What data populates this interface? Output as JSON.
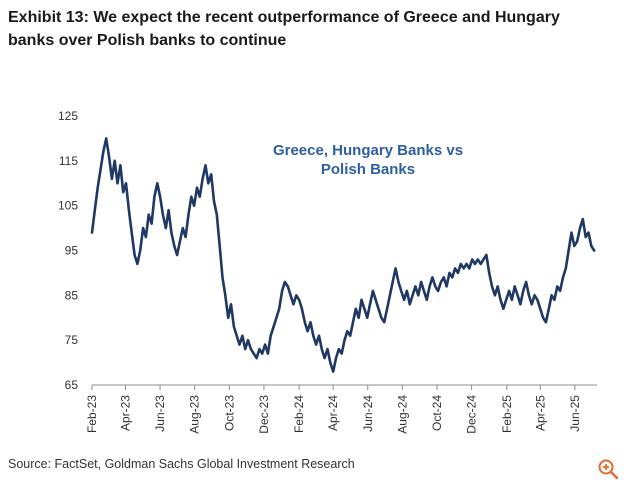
{
  "title": "Exhibit 13: We expect the recent outperformance of Greece and Hungary banks over Polish banks to continue",
  "source": "Source: FactSet, Goldman Sachs Global Investment Research",
  "zoom_icon": "zoom-in-icon",
  "colors": {
    "line": "#1f3864",
    "annotation": "#2e5f9e",
    "axis": "#8c8c8c",
    "zoom": "#e8692c"
  },
  "chart_data": {
    "type": "line",
    "annotation": [
      "Greece, Hungary Banks vs",
      "Polish Banks"
    ],
    "ylim": [
      65,
      125
    ],
    "yticks": [
      65,
      75,
      85,
      95,
      105,
      115,
      125
    ],
    "xlim": [
      "2023-02-01",
      "2025-07-10"
    ],
    "xticks": [
      {
        "date": "2023-02-01",
        "label": "Feb-23"
      },
      {
        "date": "2023-04-01",
        "label": "Apr-23"
      },
      {
        "date": "2023-06-01",
        "label": "Jun-23"
      },
      {
        "date": "2023-08-01",
        "label": "Aug-23"
      },
      {
        "date": "2023-10-01",
        "label": "Oct-23"
      },
      {
        "date": "2023-12-01",
        "label": "Dec-23"
      },
      {
        "date": "2024-02-01",
        "label": "Feb-24"
      },
      {
        "date": "2024-04-01",
        "label": "Apr-24"
      },
      {
        "date": "2024-06-01",
        "label": "Jun-24"
      },
      {
        "date": "2024-08-01",
        "label": "Aug-24"
      },
      {
        "date": "2024-10-01",
        "label": "Oct-24"
      },
      {
        "date": "2024-12-01",
        "label": "Dec-24"
      },
      {
        "date": "2025-02-01",
        "label": "Feb-25"
      },
      {
        "date": "2025-04-01",
        "label": "Apr-25"
      },
      {
        "date": "2025-06-01",
        "label": "Jun-25"
      }
    ],
    "grid": false,
    "legend": "none",
    "series": [
      {
        "points": [
          [
            "2023-02-01",
            99
          ],
          [
            "2023-02-06",
            104
          ],
          [
            "2023-02-11",
            109
          ],
          [
            "2023-02-16",
            113
          ],
          [
            "2023-02-21",
            117
          ],
          [
            "2023-02-26",
            120
          ],
          [
            "2023-03-03",
            116
          ],
          [
            "2023-03-08",
            111
          ],
          [
            "2023-03-13",
            115
          ],
          [
            "2023-03-18",
            110
          ],
          [
            "2023-03-23",
            114
          ],
          [
            "2023-03-28",
            108
          ],
          [
            "2023-04-02",
            110
          ],
          [
            "2023-04-07",
            104
          ],
          [
            "2023-04-12",
            99
          ],
          [
            "2023-04-17",
            94
          ],
          [
            "2023-04-22",
            92
          ],
          [
            "2023-04-27",
            95
          ],
          [
            "2023-05-02",
            100
          ],
          [
            "2023-05-07",
            98
          ],
          [
            "2023-05-12",
            103
          ],
          [
            "2023-05-17",
            101
          ],
          [
            "2023-05-22",
            107
          ],
          [
            "2023-05-27",
            110
          ],
          [
            "2023-06-01",
            107
          ],
          [
            "2023-06-06",
            103
          ],
          [
            "2023-06-11",
            100
          ],
          [
            "2023-06-16",
            104
          ],
          [
            "2023-06-21",
            99
          ],
          [
            "2023-06-26",
            96
          ],
          [
            "2023-07-01",
            94
          ],
          [
            "2023-07-06",
            97
          ],
          [
            "2023-07-11",
            100
          ],
          [
            "2023-07-16",
            98
          ],
          [
            "2023-07-21",
            103
          ],
          [
            "2023-07-26",
            107
          ],
          [
            "2023-07-31",
            105
          ],
          [
            "2023-08-05",
            109
          ],
          [
            "2023-08-10",
            107
          ],
          [
            "2023-08-15",
            111
          ],
          [
            "2023-08-20",
            114
          ],
          [
            "2023-08-25",
            110
          ],
          [
            "2023-08-30",
            112
          ],
          [
            "2023-09-04",
            106
          ],
          [
            "2023-09-09",
            103
          ],
          [
            "2023-09-14",
            96
          ],
          [
            "2023-09-19",
            89
          ],
          [
            "2023-09-24",
            85
          ],
          [
            "2023-09-29",
            80
          ],
          [
            "2023-10-04",
            83
          ],
          [
            "2023-10-09",
            78
          ],
          [
            "2023-10-14",
            76
          ],
          [
            "2023-10-19",
            74
          ],
          [
            "2023-10-24",
            76
          ],
          [
            "2023-10-29",
            73
          ],
          [
            "2023-11-03",
            75
          ],
          [
            "2023-11-08",
            73
          ],
          [
            "2023-11-13",
            72
          ],
          [
            "2023-11-18",
            71
          ],
          [
            "2023-11-23",
            73
          ],
          [
            "2023-11-28",
            72
          ],
          [
            "2023-12-03",
            74
          ],
          [
            "2023-12-08",
            72
          ],
          [
            "2023-12-13",
            76
          ],
          [
            "2023-12-18",
            78
          ],
          [
            "2023-12-23",
            80
          ],
          [
            "2023-12-28",
            82
          ],
          [
            "2024-01-02",
            86
          ],
          [
            "2024-01-07",
            88
          ],
          [
            "2024-01-12",
            87
          ],
          [
            "2024-01-17",
            85
          ],
          [
            "2024-01-22",
            83
          ],
          [
            "2024-01-27",
            85
          ],
          [
            "2024-02-01",
            84
          ],
          [
            "2024-02-06",
            82
          ],
          [
            "2024-02-11",
            79
          ],
          [
            "2024-02-16",
            77
          ],
          [
            "2024-02-21",
            79
          ],
          [
            "2024-02-26",
            76
          ],
          [
            "2024-03-02",
            74
          ],
          [
            "2024-03-07",
            76
          ],
          [
            "2024-03-12",
            73
          ],
          [
            "2024-03-17",
            71
          ],
          [
            "2024-03-22",
            73
          ],
          [
            "2024-03-27",
            70
          ],
          [
            "2024-04-01",
            68
          ],
          [
            "2024-04-06",
            71
          ],
          [
            "2024-04-11",
            73
          ],
          [
            "2024-04-16",
            72
          ],
          [
            "2024-04-21",
            75
          ],
          [
            "2024-04-26",
            77
          ],
          [
            "2024-05-01",
            76
          ],
          [
            "2024-05-06",
            79
          ],
          [
            "2024-05-11",
            82
          ],
          [
            "2024-05-16",
            80
          ],
          [
            "2024-05-21",
            84
          ],
          [
            "2024-05-26",
            82
          ],
          [
            "2024-05-31",
            80
          ],
          [
            "2024-06-05",
            83
          ],
          [
            "2024-06-10",
            86
          ],
          [
            "2024-06-15",
            84
          ],
          [
            "2024-06-20",
            82
          ],
          [
            "2024-06-25",
            80
          ],
          [
            "2024-06-30",
            79
          ],
          [
            "2024-07-05",
            82
          ],
          [
            "2024-07-10",
            85
          ],
          [
            "2024-07-15",
            88
          ],
          [
            "2024-07-20",
            91
          ],
          [
            "2024-07-25",
            88
          ],
          [
            "2024-07-30",
            86
          ],
          [
            "2024-08-04",
            84
          ],
          [
            "2024-08-09",
            86
          ],
          [
            "2024-08-14",
            83
          ],
          [
            "2024-08-19",
            85
          ],
          [
            "2024-08-24",
            87
          ],
          [
            "2024-08-29",
            85
          ],
          [
            "2024-09-03",
            88
          ],
          [
            "2024-09-08",
            86
          ],
          [
            "2024-09-13",
            84
          ],
          [
            "2024-09-18",
            87
          ],
          [
            "2024-09-23",
            89
          ],
          [
            "2024-09-28",
            87
          ],
          [
            "2024-10-03",
            86
          ],
          [
            "2024-10-08",
            88
          ],
          [
            "2024-10-13",
            89
          ],
          [
            "2024-10-18",
            87
          ],
          [
            "2024-10-23",
            90
          ],
          [
            "2024-10-28",
            89
          ],
          [
            "2024-11-02",
            91
          ],
          [
            "2024-11-07",
            90
          ],
          [
            "2024-11-12",
            92
          ],
          [
            "2024-11-17",
            91
          ],
          [
            "2024-11-22",
            92
          ],
          [
            "2024-11-27",
            91
          ],
          [
            "2024-12-02",
            93
          ],
          [
            "2024-12-07",
            92
          ],
          [
            "2024-12-12",
            93
          ],
          [
            "2024-12-17",
            92
          ],
          [
            "2024-12-22",
            93
          ],
          [
            "2024-12-27",
            94
          ],
          [
            "2025-01-01",
            90
          ],
          [
            "2025-01-06",
            87
          ],
          [
            "2025-01-11",
            85
          ],
          [
            "2025-01-16",
            87
          ],
          [
            "2025-01-21",
            84
          ],
          [
            "2025-01-26",
            82
          ],
          [
            "2025-01-31",
            84
          ],
          [
            "2025-02-05",
            86
          ],
          [
            "2025-02-10",
            84
          ],
          [
            "2025-02-15",
            87
          ],
          [
            "2025-02-20",
            85
          ],
          [
            "2025-02-25",
            83
          ],
          [
            "2025-03-02",
            86
          ],
          [
            "2025-03-07",
            88
          ],
          [
            "2025-03-12",
            85
          ],
          [
            "2025-03-17",
            83
          ],
          [
            "2025-03-22",
            85
          ],
          [
            "2025-03-27",
            84
          ],
          [
            "2025-04-01",
            82
          ],
          [
            "2025-04-06",
            80
          ],
          [
            "2025-04-11",
            79
          ],
          [
            "2025-04-16",
            82
          ],
          [
            "2025-04-21",
            85
          ],
          [
            "2025-04-26",
            84
          ],
          [
            "2025-05-01",
            87
          ],
          [
            "2025-05-06",
            86
          ],
          [
            "2025-05-11",
            89
          ],
          [
            "2025-05-16",
            91
          ],
          [
            "2025-05-21",
            95
          ],
          [
            "2025-05-26",
            99
          ],
          [
            "2025-05-31",
            96
          ],
          [
            "2025-06-05",
            97
          ],
          [
            "2025-06-10",
            100
          ],
          [
            "2025-06-15",
            102
          ],
          [
            "2025-06-20",
            98
          ],
          [
            "2025-06-25",
            99
          ],
          [
            "2025-06-30",
            96
          ],
          [
            "2025-07-05",
            95
          ]
        ]
      }
    ]
  }
}
